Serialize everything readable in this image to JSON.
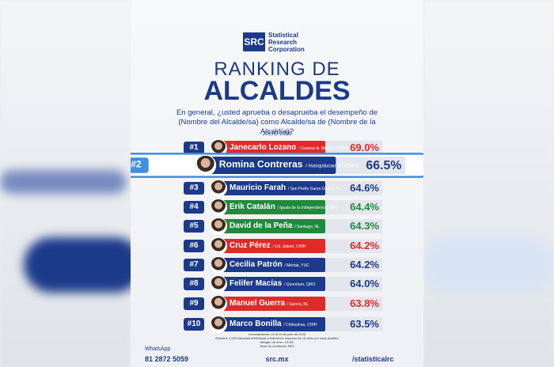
{
  "header": {
    "logo_mark": "SRC",
    "logo_text": "Statistical Research Corporation",
    "title_top": "RANKING DE",
    "title_main": "ALCALDES",
    "question": "En general, ¿usted aprueba o desaprueba el desempeño de (Nombre del Alcalde/sa) como Alcalde/sa de (Nombre de la Alcaldía)?",
    "period": "JULIO 2026"
  },
  "rows": [
    {
      "rank": "#1",
      "name": "Janecarlo Lozano",
      "location": "/ Gustavo A. Madero, CDMX",
      "value": "69.0%",
      "color": "#e02a2a"
    },
    {
      "rank": "#2",
      "name": "Romina Contreras",
      "location": "/ Huixquilucan, EDOMEX",
      "value": "66.5%",
      "color": "#1c3a8a",
      "highlight": true
    },
    {
      "rank": "#3",
      "name": "Mauricio Farah",
      "location": "/ San Pedro Garza García, NL",
      "value": "64.6%",
      "color": "#1c3a8a"
    },
    {
      "rank": "#4",
      "name": "Erik Catalán",
      "location": "/ Iguala de la Independencia, GRO",
      "value": "64.4%",
      "color": "#1f8a3c"
    },
    {
      "rank": "#5",
      "name": "David de la Peña",
      "location": "/ Santiago, NL",
      "value": "64.3%",
      "color": "#1f8a3c"
    },
    {
      "rank": "#6",
      "name": "Cruz Pérez",
      "location": "/ Cd. Juárez, CHIH",
      "value": "64.2%",
      "color": "#e02a2a"
    },
    {
      "rank": "#7",
      "name": "Cecilia Patrón",
      "location": "/ Mérida, YUC",
      "value": "64.2%",
      "color": "#1c3a8a"
    },
    {
      "rank": "#8",
      "name": "Felifer Macías",
      "location": "/ Querétaro, QRO",
      "value": "64.0%",
      "color": "#1c3a8a"
    },
    {
      "rank": "#9",
      "name": "Manuel Guerra",
      "location": "/ García, NL",
      "value": "63.8%",
      "color": "#e02a2a"
    },
    {
      "rank": "#10",
      "name": "Marco Bonilla",
      "location": "/ Chihuahua, CHIH",
      "value": "63.5%",
      "color": "#1c3a8a"
    }
  ],
  "footer": {
    "whatsapp_label": "WhatsApp",
    "phone": "81 2872 5059",
    "website": "src.mx",
    "social": "/statisticalrc",
    "methodology": [
      "Levantamiento: 22 al 24 de julio de 2026",
      "Muestra: 1,000 llamadas telefónicas a individuos mayores de 18 años por cada alcaldía",
      "Margen de error: ±3.5%",
      "Nivel de confianza: 95%"
    ]
  }
}
